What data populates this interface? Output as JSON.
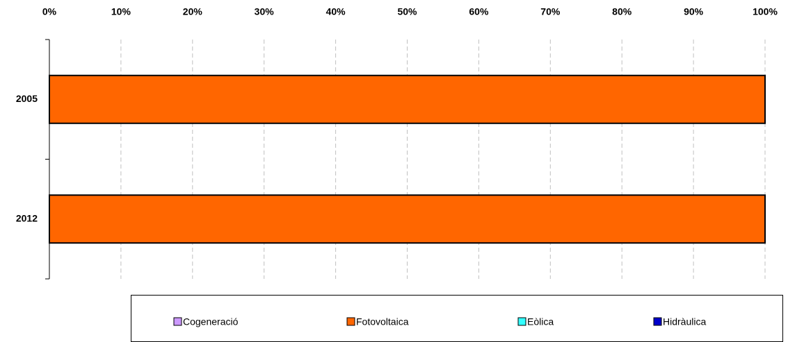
{
  "chart_data": {
    "type": "stacked-bar-horizontal",
    "categories": [
      "2005",
      "2012"
    ],
    "series": [
      {
        "name": "Cogeneració",
        "color": "#CC99FF",
        "values": [
          0,
          0
        ]
      },
      {
        "name": "Fotovoltaica",
        "color": "#FF6600",
        "values": [
          100,
          100
        ]
      },
      {
        "name": "Eòlica",
        "color": "#33FFFF",
        "values": [
          0,
          0
        ]
      },
      {
        "name": "Hidràulica",
        "color": "#0000CC",
        "values": [
          0,
          0
        ]
      }
    ],
    "xlim": [
      0,
      100
    ],
    "xticks": [
      {
        "value": 0,
        "label": "0%"
      },
      {
        "value": 10,
        "label": "10%"
      },
      {
        "value": 20,
        "label": "20%"
      },
      {
        "value": 30,
        "label": "30%"
      },
      {
        "value": 40,
        "label": "40%"
      },
      {
        "value": 50,
        "label": "50%"
      },
      {
        "value": 60,
        "label": "60%"
      },
      {
        "value": 70,
        "label": "70%"
      },
      {
        "value": 80,
        "label": "80%"
      },
      {
        "value": 90,
        "label": "90%"
      },
      {
        "value": 100,
        "label": "100%"
      }
    ],
    "grid": true,
    "legend": "bottom"
  }
}
